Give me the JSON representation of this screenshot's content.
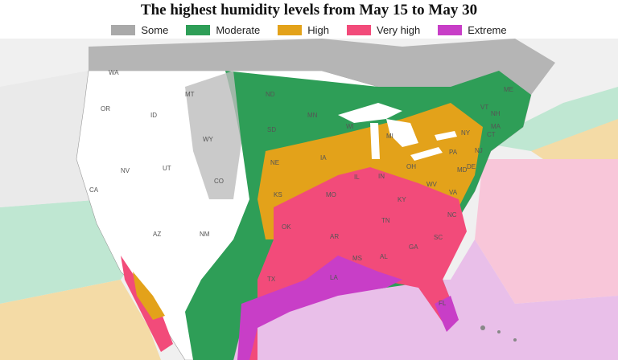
{
  "title": "The highest humidity levels from May 15 to May 30",
  "legend": [
    {
      "label": "Some",
      "color": "#a9a9a9"
    },
    {
      "label": "Moderate",
      "color": "#2e9e57"
    },
    {
      "label": "High",
      "color": "#e3a21a"
    },
    {
      "label": "Very high",
      "color": "#f24b7a"
    },
    {
      "label": "Extreme",
      "color": "#c83ec7"
    }
  ],
  "ocean_colors": {
    "pacific_teal": "#bfe7d2",
    "pacific_tan": "#f4dba6",
    "atlantic_pink": "#f8c6d9",
    "gulf_violet": "#e9bfe9",
    "land_white": "#ffffff",
    "canada_light": "#f0f0f0"
  },
  "state_labels": [
    "WA",
    "OR",
    "ID",
    "MT",
    "WY",
    "NV",
    "UT",
    "CA",
    "AZ",
    "CO",
    "NM",
    "ND",
    "SD",
    "NE",
    "KS",
    "OK",
    "TX",
    "MN",
    "IA",
    "MO",
    "AR",
    "LA",
    "WI",
    "IL",
    "MI",
    "IN",
    "OH",
    "KY",
    "TN",
    "MS",
    "AL",
    "GA",
    "FL",
    "SC",
    "NC",
    "VA",
    "WV",
    "PA",
    "NY",
    "VT",
    "NH",
    "ME",
    "MA",
    "CT",
    "NJ",
    "DE",
    "MD"
  ]
}
